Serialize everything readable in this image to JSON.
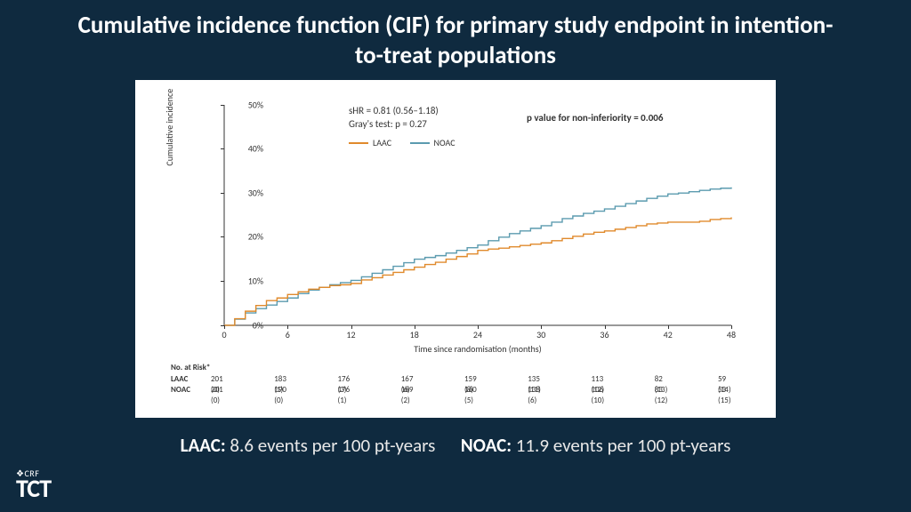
{
  "title": "Cumulative incidence function (CIF) for primary study endpoint in intention-to-treat populations",
  "chart": {
    "type": "line",
    "background_color": "#ffffff",
    "slide_background": "#0f2a3f",
    "ylabel": "Cumulative incidence",
    "xlabel": "Time since randomisation (months)",
    "label_fontsize": 10,
    "ylim": [
      0,
      50
    ],
    "yticks": [
      0,
      10,
      20,
      30,
      40,
      50
    ],
    "ytick_labels": [
      "0%",
      "10%",
      "20%",
      "30%",
      "40%",
      "50%"
    ],
    "xlim": [
      0,
      48
    ],
    "xticks": [
      0,
      6,
      12,
      18,
      24,
      30,
      36,
      42,
      48
    ],
    "annotations": {
      "shr": "sHR = 0.81 (0.56–1.18)",
      "grays": "Gray's test: p = 0.27",
      "pvalue": "p value for non-inferiority  = 0.006"
    },
    "legend": [
      {
        "label": "LAAC",
        "color": "#e08a2c"
      },
      {
        "label": "NOAC",
        "color": "#5b9baf"
      }
    ],
    "line_width": 1.4,
    "series": {
      "LAAC": {
        "color": "#e08a2c",
        "points": [
          [
            0,
            0
          ],
          [
            1,
            1.5
          ],
          [
            2,
            3.2
          ],
          [
            3,
            4.5
          ],
          [
            4,
            5.6
          ],
          [
            5,
            6.2
          ],
          [
            6,
            7.0
          ],
          [
            7,
            7.6
          ],
          [
            8,
            8.2
          ],
          [
            9,
            8.6
          ],
          [
            10,
            9.0
          ],
          [
            11,
            9.2
          ],
          [
            12,
            9.5
          ],
          [
            13,
            10.3
          ],
          [
            14,
            10.8
          ],
          [
            15,
            11.4
          ],
          [
            16,
            12.0
          ],
          [
            17,
            12.6
          ],
          [
            18,
            13.2
          ],
          [
            19,
            13.8
          ],
          [
            20,
            14.3
          ],
          [
            21,
            15.0
          ],
          [
            22,
            15.6
          ],
          [
            23,
            16.2
          ],
          [
            24,
            17.0
          ],
          [
            25,
            17.3
          ],
          [
            26,
            17.5
          ],
          [
            27,
            17.8
          ],
          [
            28,
            18.1
          ],
          [
            29,
            18.4
          ],
          [
            30,
            18.7
          ],
          [
            31,
            19.2
          ],
          [
            32,
            19.7
          ],
          [
            33,
            20.2
          ],
          [
            34,
            20.7
          ],
          [
            35,
            21.1
          ],
          [
            36,
            21.4
          ],
          [
            37,
            21.8
          ],
          [
            38,
            22.2
          ],
          [
            39,
            22.6
          ],
          [
            40,
            23.0
          ],
          [
            41,
            23.2
          ],
          [
            42,
            23.4
          ],
          [
            43,
            23.4
          ],
          [
            44,
            23.4
          ],
          [
            45,
            23.6
          ],
          [
            46,
            24.0
          ],
          [
            47,
            24.2
          ],
          [
            48,
            24.5
          ]
        ]
      },
      "NOAC": {
        "color": "#5b9baf",
        "points": [
          [
            0,
            0
          ],
          [
            1,
            1.4
          ],
          [
            2,
            2.8
          ],
          [
            3,
            3.8
          ],
          [
            4,
            4.6
          ],
          [
            5,
            5.4
          ],
          [
            6,
            6.2
          ],
          [
            7,
            7.2
          ],
          [
            8,
            8.0
          ],
          [
            9,
            8.6
          ],
          [
            10,
            9.2
          ],
          [
            11,
            9.7
          ],
          [
            12,
            10.2
          ],
          [
            13,
            11.0
          ],
          [
            14,
            11.8
          ],
          [
            15,
            12.6
          ],
          [
            16,
            13.4
          ],
          [
            17,
            14.2
          ],
          [
            18,
            15.0
          ],
          [
            19,
            15.4
          ],
          [
            20,
            15.8
          ],
          [
            21,
            16.4
          ],
          [
            22,
            17.0
          ],
          [
            23,
            17.6
          ],
          [
            24,
            18.2
          ],
          [
            25,
            19.2
          ],
          [
            26,
            20.0
          ],
          [
            27,
            20.8
          ],
          [
            28,
            21.4
          ],
          [
            29,
            22.0
          ],
          [
            30,
            22.6
          ],
          [
            31,
            23.4
          ],
          [
            32,
            24.2
          ],
          [
            33,
            24.8
          ],
          [
            34,
            25.4
          ],
          [
            35,
            25.9
          ],
          [
            36,
            26.4
          ],
          [
            37,
            27.0
          ],
          [
            38,
            27.6
          ],
          [
            39,
            28.2
          ],
          [
            40,
            28.8
          ],
          [
            41,
            29.3
          ],
          [
            42,
            29.8
          ],
          [
            43,
            30.0
          ],
          [
            44,
            30.3
          ],
          [
            45,
            30.6
          ],
          [
            46,
            30.9
          ],
          [
            47,
            31.1
          ],
          [
            48,
            31.3
          ]
        ]
      }
    }
  },
  "risk_table": {
    "header": "No. at Risk*",
    "ticks": [
      0,
      6,
      12,
      18,
      24,
      30,
      36,
      42,
      48
    ],
    "rows": [
      {
        "label": "LAAC",
        "cells": [
          "201 (0)",
          "183 (1)",
          "176 (3)",
          "167 (6)",
          "159 (8)",
          "135 (11)",
          "113 (12)",
          "82 (13)",
          "59 (14)"
        ]
      },
      {
        "label": "NOAC",
        "cells": [
          "201 (0)",
          "190 (0)",
          "176 (1)",
          "169 (2)",
          "160 (5)",
          "138 (6)",
          "106 (10)",
          "83 (12)",
          "53 (15)"
        ]
      }
    ]
  },
  "footer": {
    "laac_label": "LAAC:",
    "laac_value": " 8.6 events per 100 pt-years",
    "noac_label": "NOAC:",
    "noac_value": " 11.9 events per 100 pt-years"
  },
  "logo": {
    "crf": "❖CRF",
    "tct": "TCT"
  }
}
